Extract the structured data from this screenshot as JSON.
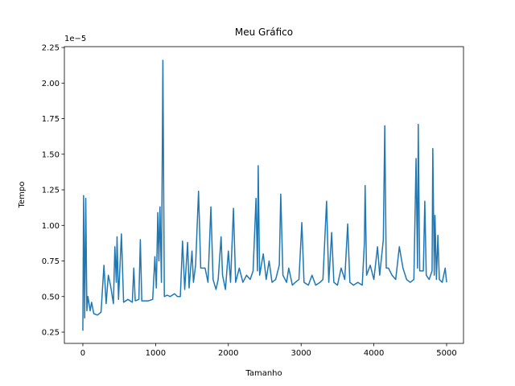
{
  "chart_data": {
    "type": "line",
    "title": "Meu Gráfico",
    "x_label": "Tamanho",
    "y_label": "Tempo",
    "offset_label": "1e−5",
    "color": "#1f77b4",
    "x": [
      0,
      10,
      25,
      40,
      55,
      70,
      100,
      120,
      150,
      200,
      250,
      290,
      320,
      350,
      380,
      420,
      440,
      460,
      470,
      490,
      530,
      560,
      620,
      680,
      700,
      720,
      770,
      790,
      810,
      900,
      960,
      990,
      1010,
      1030,
      1045,
      1060,
      1080,
      1100,
      1120,
      1160,
      1200,
      1260,
      1300,
      1340,
      1370,
      1400,
      1440,
      1460,
      1500,
      1520,
      1550,
      1590,
      1620,
      1680,
      1720,
      1760,
      1790,
      1830,
      1860,
      1900,
      1920,
      1960,
      2000,
      2030,
      2070,
      2100,
      2150,
      2200,
      2250,
      2300,
      2340,
      2380,
      2400,
      2410,
      2430,
      2480,
      2520,
      2560,
      2600,
      2650,
      2700,
      2720,
      2750,
      2800,
      2830,
      2880,
      2920,
      2970,
      3010,
      3040,
      3100,
      3150,
      3200,
      3260,
      3300,
      3350,
      3380,
      3420,
      3450,
      3500,
      3550,
      3600,
      3640,
      3670,
      3720,
      3780,
      3840,
      3870,
      3880,
      3900,
      3950,
      4000,
      4050,
      4080,
      4130,
      4150,
      4170,
      4200,
      4250,
      4300,
      4350,
      4400,
      4450,
      4500,
      4550,
      4580,
      4600,
      4610,
      4630,
      4680,
      4700,
      4720,
      4760,
      4800,
      4810,
      4830,
      4840,
      4860,
      4880,
      4900,
      4940,
      4980,
      5000
    ],
    "values": [
      0.26,
      1.21,
      0.35,
      1.19,
      0.4,
      0.5,
      0.4,
      0.46,
      0.38,
      0.37,
      0.39,
      0.72,
      0.45,
      0.65,
      0.58,
      0.45,
      0.85,
      0.6,
      0.92,
      0.48,
      0.94,
      0.46,
      0.48,
      0.46,
      0.7,
      0.47,
      0.48,
      0.9,
      0.47,
      0.47,
      0.48,
      0.78,
      0.56,
      1.09,
      0.75,
      1.13,
      0.6,
      2.16,
      0.5,
      0.51,
      0.5,
      0.52,
      0.5,
      0.5,
      0.89,
      0.55,
      0.88,
      0.56,
      0.82,
      0.6,
      0.72,
      1.24,
      0.7,
      0.7,
      0.6,
      1.13,
      0.62,
      0.55,
      0.62,
      0.92,
      0.65,
      0.55,
      0.82,
      0.6,
      1.12,
      0.6,
      0.7,
      0.6,
      0.65,
      0.62,
      0.68,
      1.19,
      0.68,
      1.42,
      0.65,
      0.8,
      0.62,
      0.75,
      0.6,
      0.62,
      0.72,
      1.22,
      0.65,
      0.6,
      0.7,
      0.58,
      0.6,
      0.62,
      1.02,
      0.6,
      0.58,
      0.65,
      0.58,
      0.6,
      0.62,
      1.17,
      0.6,
      0.95,
      0.6,
      0.58,
      0.7,
      0.62,
      1.01,
      0.6,
      0.58,
      0.6,
      0.58,
      0.88,
      1.28,
      0.65,
      0.72,
      0.62,
      0.85,
      0.65,
      0.9,
      1.7,
      0.7,
      0.7,
      0.65,
      0.62,
      0.85,
      0.7,
      0.62,
      0.6,
      0.62,
      1.47,
      0.7,
      1.71,
      0.68,
      0.68,
      1.17,
      0.65,
      0.62,
      0.68,
      1.54,
      0.65,
      1.07,
      0.62,
      0.93,
      0.62,
      0.6,
      0.7,
      0.6
    ],
    "xlim": [
      -254,
      5232
    ],
    "ylim": [
      0.171,
      2.256
    ],
    "xticks": [
      0,
      1000,
      2000,
      3000,
      4000,
      5000
    ],
    "yticks": [
      0.25,
      {
        "value": 0.5,
        "label": "0.50"
      },
      0.75,
      {
        "value": 1.0,
        "label": "1.00"
      },
      1.25,
      {
        "value": 1.5,
        "label": "1.50"
      },
      1.75,
      {
        "value": 2.0,
        "label": "2.00"
      },
      2.25
    ]
  }
}
